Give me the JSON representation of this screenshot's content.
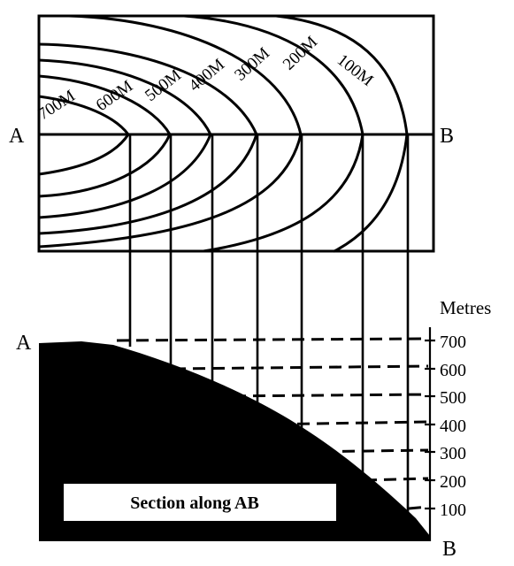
{
  "title": "",
  "point_a_top": "A",
  "point_b_top": "B",
  "point_a_section": "A",
  "point_b_section": "B",
  "contour_labels": [
    "700M",
    "600M",
    "500M",
    "400M",
    "300M",
    "200M",
    "100M"
  ],
  "scale_title": "Metres",
  "scale_values": [
    "700",
    "600",
    "500",
    "400",
    "300",
    "200",
    "100"
  ],
  "section_caption": "Section along AB",
  "colors": {
    "ink": "#000000",
    "paper": "#ffffff"
  }
}
